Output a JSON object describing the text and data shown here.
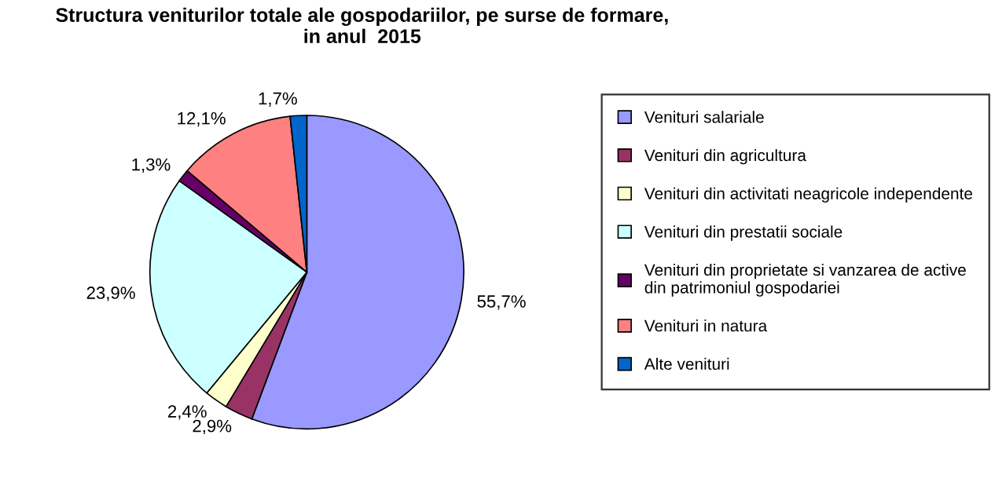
{
  "chart_data": {
    "type": "pie",
    "title": "Structura veniturilor totale ale gospodariilor, pe surse de formare,\nin anul  2015",
    "categories": [
      "Venituri salariale",
      "Venituri din agricultura",
      "Venituri din activitati neagricole independente",
      "Venituri din prestatii sociale",
      "Venituri din proprietate si vanzarea de active\ndin patrimoniul gospodariei",
      "Venituri in natura",
      "Alte venituri"
    ],
    "values": [
      55.7,
      2.9,
      2.4,
      23.9,
      1.3,
      12.1,
      1.7
    ],
    "value_labels": [
      "55,7%",
      "2,9%",
      "2,4%",
      "23,9%",
      "1,3%",
      "12,1%",
      "1,7%"
    ],
    "colors": [
      "#9999ff",
      "#993366",
      "#ffffcc",
      "#ccffff",
      "#660066",
      "#ff8080",
      "#0066cc"
    ],
    "legend": "right"
  }
}
